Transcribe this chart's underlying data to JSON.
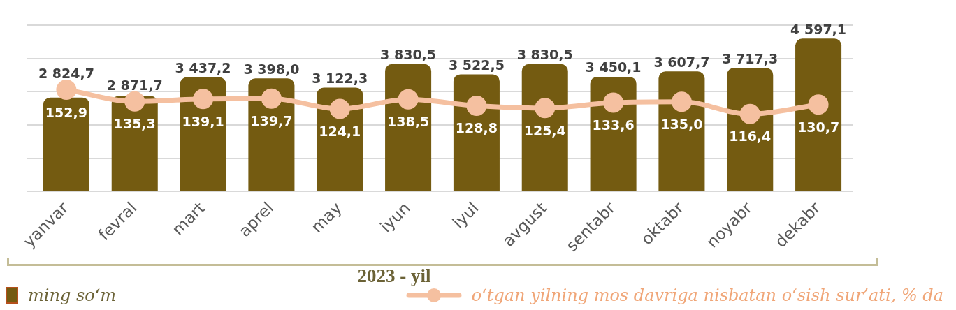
{
  "chart_data": {
    "type": "bar",
    "xlabel": "2023 - yil",
    "categories": [
      "yanvar",
      "fevral",
      "mart",
      "aprel",
      "may",
      "iyun",
      "iyul",
      "avgust",
      "sentabr",
      "oktabr",
      "noyabr",
      "dekabr"
    ],
    "series": [
      {
        "name": "ming so‘m",
        "color": "#745b11",
        "values": [
          2824.7,
          2871.7,
          3437.2,
          3398.0,
          3122.3,
          3830.5,
          3522.5,
          3830.5,
          3450.1,
          3607.7,
          3717.3,
          4597.1
        ],
        "value_labels": [
          "2 824,7",
          "2 871,7",
          "3 437,2",
          "3 398,0",
          "3 122,3",
          "3 830,5",
          "3 522,5",
          "3 830,5",
          "3 450,1",
          "3 607,7",
          "3 717,3",
          "4 597,1"
        ]
      },
      {
        "name": "o‘tgan yilning mos davriga nisbatan o‘sish sur’ati, % da",
        "type": "line",
        "axis": "y2",
        "color": "#f5c0a0",
        "values": [
          152.9,
          135.3,
          139.1,
          139.7,
          124.1,
          138.5,
          128.8,
          125.4,
          133.6,
          135.0,
          116.4,
          130.7
        ],
        "value_labels": [
          "152,9",
          "135,3",
          "139,1",
          "139,7",
          "124,1",
          "138,5",
          "128,8",
          "125,4",
          "133,6",
          "135,0",
          "116,4",
          "130,7"
        ]
      }
    ],
    "tick_labels": "x",
    "grid": "y",
    "marker": "circle",
    "legend": "bottom"
  }
}
